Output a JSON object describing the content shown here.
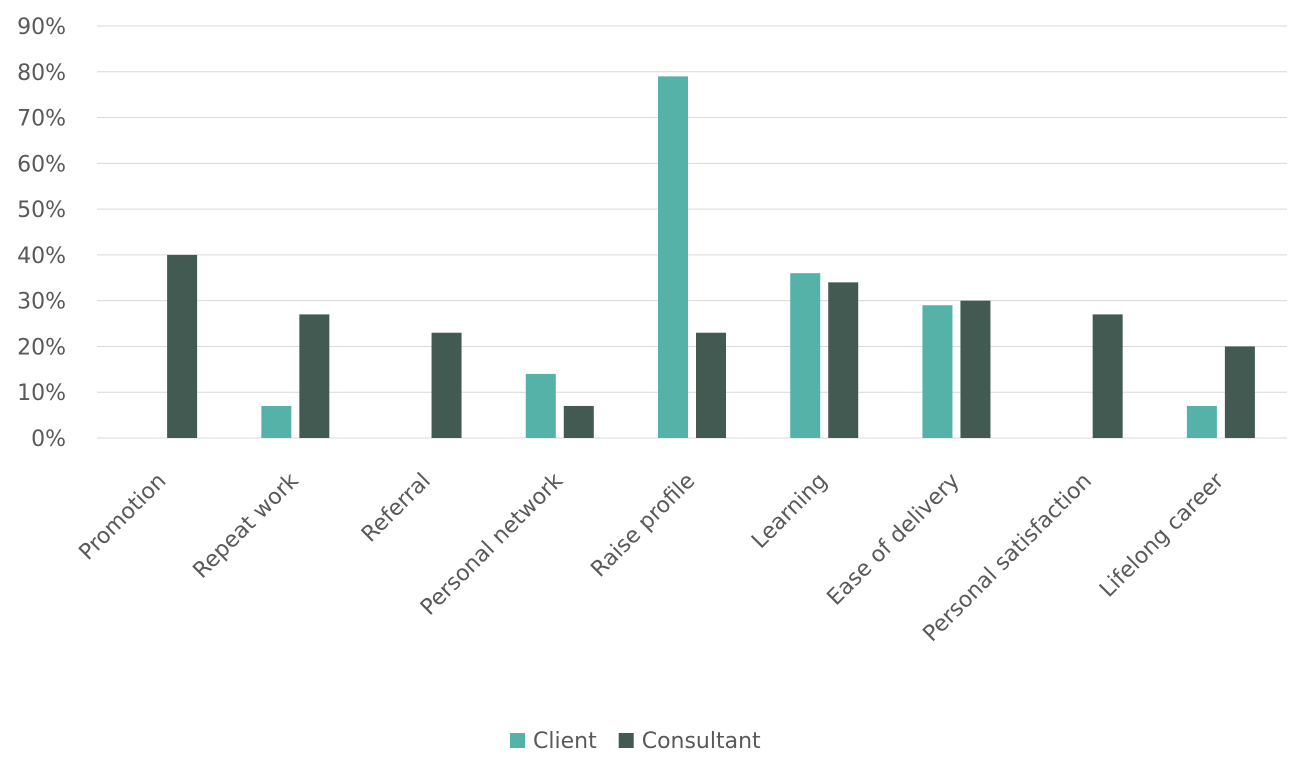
{
  "chart_data": {
    "type": "bar",
    "title": "",
    "xlabel": "",
    "ylabel": "",
    "ylim": [
      0,
      90
    ],
    "yticks": [
      0,
      10,
      20,
      30,
      40,
      50,
      60,
      70,
      80,
      90
    ],
    "ytick_format": "percent",
    "grid": true,
    "legend_position": "bottom",
    "categories": [
      "Promotion",
      "Repeat work",
      "Referral",
      "Personal network",
      "Raise profile",
      "Learning",
      "Ease of delivery",
      "Personal satisfaction",
      "Lifelong career"
    ],
    "series": [
      {
        "name": "Client",
        "color": "#55b2a9",
        "values": [
          0,
          7,
          0,
          14,
          79,
          36,
          29,
          0,
          7
        ]
      },
      {
        "name": "Consultant",
        "color": "#435a53",
        "values": [
          40,
          27,
          23,
          7,
          23,
          34,
          30,
          27,
          20
        ]
      }
    ]
  }
}
